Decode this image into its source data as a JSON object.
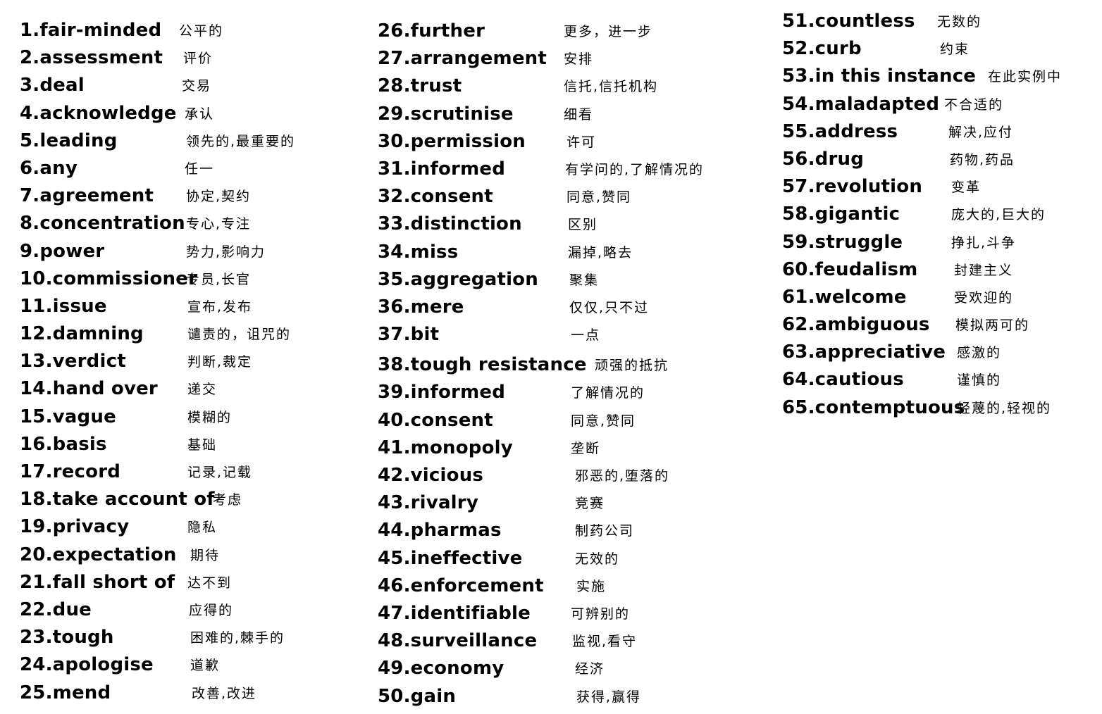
{
  "columns": [
    {
      "entries": [
        {
          "term": "1.fair-minded",
          "gloss": "公平的"
        },
        {
          "term": "2.assessment",
          "gloss": "评价"
        },
        {
          "term": "3.deal",
          "gloss": "交易"
        },
        {
          "term": "4.acknowledge",
          "gloss": "承认"
        },
        {
          "term": "5.leading",
          "gloss": "领先的,最重要的"
        },
        {
          "term": "6.any",
          "gloss": "任一"
        },
        {
          "term": "7.agreement",
          "gloss": "协定,契约"
        },
        {
          "term": "8.concentration",
          "gloss": "专心,专注"
        },
        {
          "term": "9.power",
          "gloss": "势力,影响力"
        },
        {
          "term": "10.commissioner",
          "gloss": "专员,长官"
        },
        {
          "term": "11.issue",
          "gloss": "宣布,发布"
        },
        {
          "term": "12.damning",
          "gloss": "谴责的，诅咒的"
        },
        {
          "term": "13.verdict",
          "gloss": "判断,裁定"
        },
        {
          "term": "14.hand over",
          "gloss": "递交"
        },
        {
          "term": "15.vague",
          "gloss": "模糊的"
        },
        {
          "term": "16.basis",
          "gloss": "基础"
        },
        {
          "term": "17.record",
          "gloss": "记录,记载"
        },
        {
          "term": "18.take account of",
          "gloss": "考虑"
        },
        {
          "term": "19.privacy",
          "gloss": "隐私"
        },
        {
          "term": "20.expectation",
          "gloss": "期待"
        },
        {
          "term": "21.fall short of",
          "gloss": "达不到"
        },
        {
          "term": "22.due",
          "gloss": "应得的"
        },
        {
          "term": "23.tough",
          "gloss": "困难的,棘手的"
        },
        {
          "term": "24.apologise",
          "gloss": "道歉"
        },
        {
          "term": "25.mend",
          "gloss": "改善,改进"
        }
      ]
    },
    {
      "entries": [
        {
          "term": "26.further",
          "gloss": "更多，进一步"
        },
        {
          "term": "27.arrangement",
          "gloss": "安排"
        },
        {
          "term": "28.trust",
          "gloss": "信托,信托机构"
        },
        {
          "term": "29.scrutinise",
          "gloss": "细看"
        },
        {
          "term": "30.permission",
          "gloss": "许可"
        },
        {
          "term": "31.informed",
          "gloss": "有学问的,了解情况的"
        },
        {
          "term": "32.consent",
          "gloss": "同意,赞同"
        },
        {
          "term": "33.distinction",
          "gloss": "区别"
        },
        {
          "term": "34.miss",
          "gloss": "漏掉,略去"
        },
        {
          "term": "35.aggregation",
          "gloss": "聚集"
        },
        {
          "term": "36.mere",
          "gloss": "仅仅,只不过"
        },
        {
          "term": "37.bit",
          "gloss": "一点"
        },
        {
          "term": "38.tough resistance",
          "gloss": "顽强的抵抗"
        },
        {
          "term": "39.informed",
          "gloss": "了解情况的"
        },
        {
          "term": "40.consent",
          "gloss": "同意,赞同"
        },
        {
          "term": "41.monopoly",
          "gloss": "垄断"
        },
        {
          "term": "42.vicious",
          "gloss": "邪恶的,堕落的"
        },
        {
          "term": "43.rivalry",
          "gloss": "竞赛"
        },
        {
          "term": "44.pharmas",
          "gloss": "制药公司"
        },
        {
          "term": "45.ineffective",
          "gloss": "无效的"
        },
        {
          "term": "46.enforcement",
          "gloss": "实施"
        },
        {
          "term": "47.identifiable",
          "gloss": "可辨别的"
        },
        {
          "term": "48.surveillance",
          "gloss": "监视,看守"
        },
        {
          "term": "49.economy",
          "gloss": "经济"
        },
        {
          "term": "50.gain",
          "gloss": "获得,赢得"
        }
      ]
    },
    {
      "entries": [
        {
          "term": "51.countless",
          "gloss": "无数的"
        },
        {
          "term": "52.curb",
          "gloss": "约束"
        },
        {
          "term": "53.in this instance",
          "gloss": "在此实例中"
        },
        {
          "term": "54.maladapted",
          "gloss": "不合适的"
        },
        {
          "term": "55.address",
          "gloss": "解决,应付"
        },
        {
          "term": "56.drug",
          "gloss": "药物,药品"
        },
        {
          "term": "57.revolution",
          "gloss": "变革"
        },
        {
          "term": "58.gigantic",
          "gloss": "庞大的,巨大的"
        },
        {
          "term": "59.struggle",
          "gloss": "挣扎,斗争"
        },
        {
          "term": "60.feudalism",
          "gloss": "封建主义"
        },
        {
          "term": "61.welcome",
          "gloss": "受欢迎的"
        },
        {
          "term": "62.ambiguous",
          "gloss": "模拟两可的"
        },
        {
          "term": "63.appreciative",
          "gloss": "感激的"
        },
        {
          "term": "64.cautious",
          "gloss": "谨慎的"
        },
        {
          "term": "65.contemptuous",
          "gloss": "轻蔑的,轻视的"
        }
      ]
    }
  ]
}
